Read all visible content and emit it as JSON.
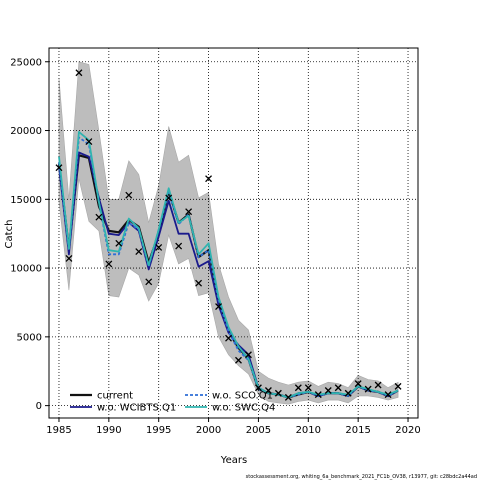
{
  "chart_data": {
    "type": "line",
    "xlabel": "Years",
    "ylabel": "Catch",
    "xlim": [
      1984,
      2021
    ],
    "ylim": [
      -900,
      26000
    ],
    "x_ticks": [
      1985,
      1990,
      1995,
      2000,
      2005,
      2010,
      2015,
      2020
    ],
    "y_ticks": [
      0,
      5000,
      10000,
      15000,
      20000,
      25000
    ],
    "grid": "dotted",
    "legend_position": "bottom-left",
    "x": [
      1985,
      1986,
      1987,
      1988,
      1989,
      1990,
      1991,
      1992,
      1993,
      1994,
      1995,
      1996,
      1997,
      1998,
      1999,
      2000,
      2001,
      2002,
      2003,
      2004,
      2005,
      2006,
      2007,
      2008,
      2009,
      2010,
      2011,
      2012,
      2013,
      2014,
      2015,
      2016,
      2017,
      2018,
      2019
    ],
    "confidence_band": {
      "color": "#bdbdbd",
      "upper": [
        23800,
        15000,
        25000,
        24800,
        20000,
        15000,
        15000,
        17800,
        16800,
        13300,
        16000,
        20300,
        17700,
        18200,
        15100,
        15500,
        10300,
        7900,
        6200,
        5500,
        2500,
        2000,
        1700,
        1500,
        1700,
        1800,
        1400,
        1700,
        1600,
        1300,
        2200,
        1900,
        1800,
        1300,
        1700
      ],
      "lower": [
        14800,
        8400,
        16500,
        13400,
        12700,
        8000,
        7900,
        10000,
        9500,
        7600,
        8900,
        12400,
        10300,
        10700,
        8000,
        8200,
        5000,
        3700,
        2900,
        2300,
        800,
        300,
        200,
        100,
        300,
        400,
        200,
        400,
        400,
        200,
        700,
        700,
        600,
        400,
        600
      ]
    },
    "series": [
      {
        "name": "current",
        "color": "#111111",
        "style": "solid",
        "values": [
          17600,
          11400,
          18200,
          18000,
          14500,
          12700,
          12600,
          13500,
          13000,
          10400,
          12500,
          15600,
          13300,
          13900,
          10800,
          11300,
          7600,
          5400,
          4200,
          3400,
          1200,
          900,
          800,
          600,
          800,
          1000,
          700,
          900,
          900,
          700,
          1400,
          1100,
          1000,
          700,
          1100
        ]
      },
      {
        "name": "w.o. WCIBTS.Q1",
        "color": "#1a1a8c",
        "style": "solid",
        "values": [
          17400,
          11000,
          18400,
          18100,
          15100,
          12500,
          12400,
          13300,
          12700,
          9900,
          12300,
          14900,
          12500,
          12500,
          10100,
          10500,
          7300,
          5300,
          4400,
          3700,
          1300,
          900,
          800,
          600,
          900,
          1000,
          700,
          900,
          900,
          700,
          1400,
          1100,
          1000,
          700,
          1100
        ]
      },
      {
        "name": "w.o. SCO.Q1",
        "color": "#2f6fd6",
        "style": "dashed",
        "values": [
          17700,
          11300,
          19500,
          19000,
          14800,
          11000,
          11000,
          13300,
          12800,
          10100,
          12800,
          15500,
          13200,
          13900,
          10800,
          11300,
          7700,
          5400,
          4000,
          3300,
          1200,
          900,
          800,
          600,
          800,
          1000,
          700,
          900,
          900,
          700,
          1400,
          1100,
          1000,
          700,
          1100
        ]
      },
      {
        "name": "w.o. SWC.Q4",
        "color": "#2fb4b0",
        "style": "solid",
        "values": [
          18100,
          11400,
          19900,
          19300,
          14800,
          11300,
          11200,
          13600,
          12900,
          10200,
          12800,
          15800,
          13300,
          13800,
          11000,
          11800,
          7900,
          5700,
          4300,
          3400,
          1300,
          900,
          800,
          600,
          900,
          1000,
          800,
          900,
          900,
          800,
          1400,
          1200,
          1000,
          800,
          1100
        ]
      }
    ],
    "observed": {
      "marker": "x",
      "x": [
        1985,
        1986,
        1987,
        1988,
        1989,
        1990,
        1991,
        1992,
        1993,
        1994,
        1995,
        1996,
        1997,
        1998,
        1999,
        2000,
        2001,
        2002,
        2003,
        2004,
        2005,
        2006,
        2007,
        2008,
        2009,
        2010,
        2011,
        2012,
        2013,
        2014,
        2015,
        2016,
        2017,
        2018,
        2019
      ],
      "y": [
        17300,
        10700,
        24200,
        19200,
        13700,
        10300,
        11800,
        15300,
        11200,
        9000,
        11500,
        15100,
        11600,
        14100,
        8900,
        16500,
        7200,
        4900,
        3300,
        3700,
        1300,
        1100,
        900,
        600,
        1300,
        1300,
        800,
        1100,
        1300,
        900,
        1600,
        1200,
        1500,
        800,
        1400
      ]
    }
  },
  "footer_text": "stockassessment.org, whiting_6a_benchmark_2021_FC1b_OV38, r13977, git: c28bdc2a44ad"
}
